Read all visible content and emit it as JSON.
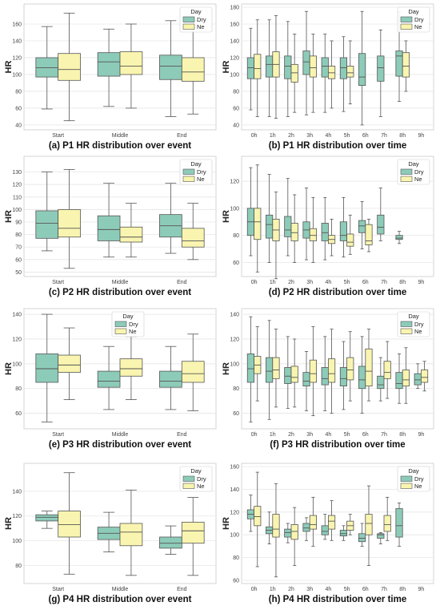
{
  "colors": {
    "dry": "#8dcbb9",
    "ne": "#f9f5b0",
    "grid": "#e6e6e6",
    "box_edge": "#555555",
    "frame": "#cccccc"
  },
  "chart_data": [
    {
      "type": "box",
      "caption": "(a) P1 HR distribution over event",
      "ylabel": "HR",
      "ylim": [
        38,
        180
      ],
      "yticks": [
        40,
        60,
        80,
        100,
        120,
        140,
        160
      ],
      "categories": [
        "Start",
        "Middle",
        "End"
      ],
      "legend": {
        "title": "Day",
        "position": "top-right"
      },
      "series": [
        {
          "name": "Dry",
          "boxes": [
            [
              59,
              97,
              108,
              120,
              157
            ],
            [
              62,
              98,
              115,
              126,
              154
            ],
            [
              50,
              94,
              110,
              123,
              164
            ]
          ]
        },
        {
          "name": "Ne",
          "boxes": [
            [
              45,
              93,
              106,
              125,
              173
            ],
            [
              60,
              100,
              110,
              127,
              160
            ],
            [
              53,
              92,
              103,
              120,
              164
            ]
          ]
        }
      ]
    },
    {
      "type": "box",
      "caption": "(b) P1 HR distribution over time",
      "ylabel": "HR",
      "ylim": [
        38,
        180
      ],
      "yticks": [
        40,
        60,
        80,
        100,
        120,
        140,
        160,
        180
      ],
      "categories": [
        "0h",
        "1h",
        "2h",
        "3h",
        "4h",
        "5h",
        "6h",
        "7h",
        "8h",
        "9h"
      ],
      "legend": {
        "title": "Day",
        "position": "top-right"
      },
      "series": [
        {
          "name": "Dry",
          "boxes": [
            [
              58,
              95,
              108,
              120,
              155
            ],
            [
              50,
              97,
              112,
              122,
              165
            ],
            [
              50,
              95,
              110,
              122,
              163
            ],
            [
              52,
              100,
              115,
              128,
              175
            ],
            [
              55,
              97,
              110,
              120,
              148
            ],
            [
              56,
              95,
              108,
              120,
              145
            ],
            [
              40,
              87,
              97,
              125,
              175
            ],
            [
              50,
              92,
              108,
              122,
              153
            ],
            [
              68,
              98,
              122,
              128,
              175
            ],
            null
          ]
        },
        {
          "name": "Ne",
          "boxes": [
            [
              50,
              95,
              107,
              124,
              165
            ],
            [
              48,
              97,
              112,
              127,
              170
            ],
            [
              55,
              91,
              102,
              112,
              148
            ],
            [
              55,
              97,
              108,
              122,
              148
            ],
            [
              60,
              95,
              102,
              110,
              140
            ],
            [
              65,
              97,
              102,
              110,
              140
            ],
            null,
            null,
            [
              80,
              97,
              110,
              126,
              140
            ],
            null
          ]
        }
      ]
    },
    {
      "type": "box",
      "caption": "(c) P2 HR distribution over event",
      "ylabel": "HR",
      "ylim": [
        49,
        140
      ],
      "yticks": [
        50,
        60,
        70,
        80,
        90,
        100,
        110,
        120,
        130
      ],
      "categories": [
        "Start",
        "Middle",
        "End"
      ],
      "legend": {
        "title": "Day",
        "position": "top-right"
      },
      "series": [
        {
          "name": "Dry",
          "boxes": [
            [
              67,
              77,
              89,
              99,
              130
            ],
            [
              62,
              75,
              84,
              95,
              121
            ],
            [
              65,
              78,
              87,
              96,
              121
            ]
          ]
        },
        {
          "name": "Ne",
          "boxes": [
            [
              53,
              78,
              85,
              100,
              132
            ],
            [
              62,
              74,
              78,
              86,
              105
            ],
            [
              60,
              70,
              75,
              85,
              105
            ]
          ]
        }
      ]
    },
    {
      "type": "box",
      "caption": "(d) P2 HR distribution over time",
      "ylabel": "HR",
      "ylim": [
        52,
        136
      ],
      "yticks": [
        60,
        80,
        100,
        120
      ],
      "categories": [
        "0h",
        "1h",
        "2h",
        "3h",
        "4h",
        "5h",
        "6h",
        "7h",
        "8h",
        "9h"
      ],
      "legend": {
        "title": "Day",
        "position": "top-right"
      },
      "series": [
        {
          "name": "Dry",
          "boxes": [
            [
              65,
              80,
              90,
              100,
              130
            ],
            [
              60,
              78,
              88,
              95,
              125
            ],
            [
              65,
              79,
              84,
              94,
              122
            ],
            [
              62,
              78,
              84,
              90,
              115
            ],
            [
              62,
              76,
              82,
              89,
              108
            ],
            [
              64,
              76,
              80,
              90,
              108
            ],
            [
              70,
              82,
              87,
              91,
              105
            ],
            [
              76,
              81,
              86,
              95,
              115
            ],
            [
              74,
              77,
              78,
              80,
              83
            ],
            null
          ]
        },
        {
          "name": "Ne",
          "boxes": [
            [
              53,
              77,
              90,
              100,
              132
            ],
            [
              48,
              76,
              84,
              92,
              112
            ],
            [
              60,
              76,
              82,
              89,
              110
            ],
            [
              60,
              76,
              80,
              85,
              108
            ],
            [
              65,
              74,
              77,
              80,
              92
            ],
            [
              66,
              72,
              75,
              81,
              95
            ],
            [
              68,
              73,
              76,
              88,
              92
            ],
            null,
            null,
            null
          ]
        }
      ]
    },
    {
      "type": "box",
      "caption": "(e) P3 HR distribution over event",
      "ylabel": "HR",
      "ylim": [
        50,
        142
      ],
      "yticks": [
        60,
        80,
        100,
        120,
        140
      ],
      "categories": [
        "Start",
        "Middle",
        "End"
      ],
      "legend": {
        "title": "Day",
        "position": "top-center"
      },
      "series": [
        {
          "name": "Dry",
          "boxes": [
            [
              53,
              85,
              96,
              108,
              140
            ],
            [
              63,
              81,
              86,
              94,
              114
            ],
            [
              63,
              81,
              86,
              94,
              114
            ]
          ]
        },
        {
          "name": "Ne",
          "boxes": [
            [
              71,
              93,
              99,
              107,
              129
            ],
            [
              71,
              90,
              96,
              104,
              122
            ],
            [
              62,
              85,
              92,
              102,
              124
            ]
          ]
        }
      ]
    },
    {
      "type": "box",
      "caption": "(f) P3 HR distribution over time",
      "ylabel": "HR",
      "ylim": [
        50,
        142
      ],
      "yticks": [
        60,
        80,
        100,
        120,
        140
      ],
      "categories": [
        "0h",
        "1h",
        "2h",
        "3h",
        "4h",
        "5h",
        "6h",
        "7h",
        "8h",
        "9h"
      ],
      "legend": {
        "title": "Day",
        "position": "top-right"
      },
      "series": [
        {
          "name": "Dry",
          "boxes": [
            [
              53,
              85,
              96,
              108,
              138
            ],
            [
              55,
              85,
              94,
              105,
              135
            ],
            [
              64,
              84,
              90,
              97,
              122
            ],
            [
              62,
              82,
              86,
              93,
              110
            ],
            [
              62,
              83,
              88,
              97,
              122
            ],
            [
              63,
              82,
              88,
              97,
              118
            ],
            [
              60,
              80,
              87,
              98,
              122
            ],
            [
              70,
              80,
              83,
              90,
              105
            ],
            [
              68,
              80,
              84,
              93,
              108
            ],
            [
              80,
              83,
              87,
              92,
              100
            ]
          ]
        },
        {
          "name": "Ne",
          "boxes": [
            [
              70,
              92,
              99,
              106,
              130
            ],
            [
              65,
              88,
              95,
              105,
              128
            ],
            [
              65,
              85,
              89,
              98,
              120
            ],
            [
              58,
              85,
              92,
              103,
              130
            ],
            [
              60,
              85,
              92,
              104,
              128
            ],
            [
              70,
              87,
              95,
              105,
              126
            ],
            [
              70,
              82,
              94,
              112,
              128
            ],
            [
              72,
              88,
              93,
              102,
              118
            ],
            [
              68,
              82,
              87,
              95,
              113
            ],
            [
              78,
              85,
              89,
              95,
              102
            ]
          ]
        }
      ]
    },
    {
      "type": "box",
      "caption": "(g) P4 HR distribution over event",
      "ylabel": "HR",
      "ylim": [
        68,
        160
      ],
      "yticks": [
        80,
        100,
        120,
        140
      ],
      "categories": [
        "Start",
        "Middle",
        "End"
      ],
      "legend": {
        "title": "Day",
        "position": "top-right"
      },
      "series": [
        {
          "name": "Dry",
          "boxes": [
            [
              110,
              116,
              119,
              121,
              124
            ],
            [
              91,
              101,
              106,
              111,
              123
            ],
            [
              89,
              94,
              98,
              103,
              112
            ]
          ]
        },
        {
          "name": "Ne",
          "boxes": [
            [
              73,
              103,
              113,
              124,
              155
            ],
            [
              72,
              96,
              107,
              114,
              141
            ],
            [
              72,
              98,
              108,
              115,
              135
            ]
          ]
        }
      ]
    },
    {
      "type": "box",
      "caption": "(h) P4 HR distribution over time",
      "ylabel": "HR",
      "ylim": [
        60,
        160
      ],
      "yticks": [
        60,
        80,
        100,
        120,
        140,
        160
      ],
      "categories": [
        "0h",
        "1h",
        "2h",
        "3h",
        "4h",
        "5h",
        "6h",
        "7h",
        "8h",
        "9h"
      ],
      "legend": {
        "title": "Day",
        "position": "top-right"
      },
      "series": [
        {
          "name": "Dry",
          "boxes": [
            [
              103,
              114,
              118,
              122,
              135
            ],
            [
              92,
              101,
              104,
              107,
              120
            ],
            [
              93,
              98,
              102,
              105,
              110
            ],
            [
              95,
              103,
              106,
              110,
              115
            ],
            [
              96,
              100,
              103,
              108,
              118
            ],
            [
              95,
              99,
              101,
              104,
              108
            ],
            [
              90,
              94,
              97,
              101,
              110
            ],
            [
              92,
              97,
              100,
              101,
              102
            ],
            [
              90,
              98,
              108,
              123,
              128
            ],
            null
          ]
        },
        {
          "name": "Ne",
          "boxes": [
            [
              72,
              108,
              116,
              125,
              155
            ],
            [
              63,
              98,
              105,
              118,
              145
            ],
            [
              73,
              96,
              103,
              109,
              124
            ],
            [
              90,
              105,
              109,
              117,
              133
            ],
            [
              95,
              105,
              112,
              117,
              130
            ],
            [
              100,
              104,
              108,
              112,
              118
            ],
            [
              73,
              100,
              110,
              118,
              143
            ],
            [
              95,
              103,
              109,
              117,
              133
            ],
            null,
            null
          ]
        }
      ]
    }
  ]
}
